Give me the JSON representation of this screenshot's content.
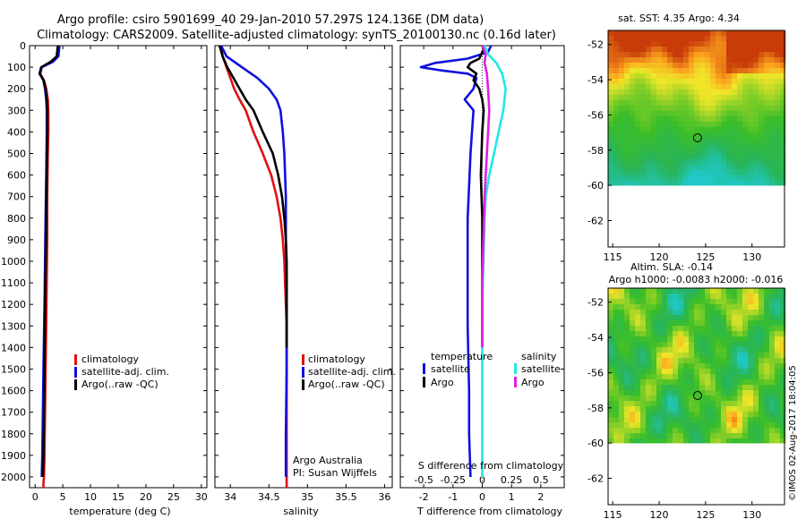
{
  "header": {
    "line1": "Argo profile: csiro 5901699_40 29-Jan-2010 57.297S 124.136E (DM data)",
    "line2": "Climatology: CARS2009. Satellite-adjusted climatology: synTS_20100130.nc (0.16d later)"
  },
  "colors": {
    "red": "#e01010",
    "blue": "#1010e0",
    "black": "#000000",
    "cyan": "#20e8e8",
    "magenta": "#e020e0"
  },
  "depth_ticks": [
    0,
    100,
    200,
    300,
    400,
    500,
    600,
    700,
    800,
    900,
    1000,
    1100,
    1200,
    1300,
    1400,
    1500,
    1600,
    1700,
    1800,
    1900,
    2000
  ],
  "chart_data": [
    {
      "type": "line",
      "xlabel": "temperature (deg C)",
      "xlim": [
        -1,
        31
      ],
      "ylim": [
        0,
        2050
      ],
      "xticks": [
        0,
        5,
        10,
        15,
        20,
        25,
        30
      ],
      "legend": {
        "placement": "lower-middle",
        "entries": [
          "climatology",
          "satellite-adj. clim.",
          "Argo(..raw -QC)"
        ]
      },
      "series": [
        {
          "name": "climatology",
          "color": "red",
          "x": [
            4.2,
            4.0,
            3.0,
            1.2,
            0.9,
            1.6,
            2.0,
            2.3,
            2.4,
            2.4,
            2.3,
            2.2,
            2.2,
            2.1,
            2.0,
            1.9,
            1.8,
            1.7,
            1.6,
            1.5,
            1.5
          ],
          "y": [
            0,
            50,
            75,
            100,
            130,
            160,
            200,
            250,
            300,
            400,
            500,
            700,
            900,
            1100,
            1300,
            1500,
            1700,
            1900,
            2000,
            2030,
            2050
          ]
        },
        {
          "name": "satellite-adj. clim.",
          "color": "blue",
          "x": [
            4.4,
            4.2,
            3.2,
            1.2,
            0.9,
            1.5,
            1.8,
            2.0,
            2.1,
            2.1,
            2.0,
            1.9,
            1.8,
            1.7,
            1.5,
            1.4,
            1.3,
            1.2
          ],
          "y": [
            0,
            50,
            75,
            100,
            130,
            160,
            200,
            250,
            300,
            400,
            600,
            800,
            1000,
            1200,
            1500,
            1700,
            1900,
            2000
          ]
        },
        {
          "name": "Argo(..raw -QC)",
          "color": "black",
          "x": [
            4.1,
            3.9,
            2.8,
            1.1,
            0.8,
            1.5,
            1.9,
            2.1,
            2.2,
            2.2,
            2.1,
            2.0,
            1.9,
            1.8,
            1.7,
            1.6,
            1.5,
            1.4
          ],
          "y": [
            0,
            50,
            75,
            100,
            130,
            160,
            200,
            250,
            300,
            400,
            600,
            800,
            1000,
            1200,
            1500,
            1700,
            1900,
            2000
          ]
        }
      ]
    },
    {
      "type": "line",
      "xlabel": "salinity",
      "xlim": [
        33.8,
        36.1
      ],
      "ylim": [
        0,
        2050
      ],
      "xticks": [
        34,
        34.5,
        35,
        35.5,
        36
      ],
      "xticklabels": [
        "34",
        "34.5",
        "35",
        "35.5",
        "36"
      ],
      "legend": {
        "placement": "lower-right",
        "entries": [
          "climatology",
          "satellite-adj. clim.",
          "Argo(..raw -QC)"
        ]
      },
      "annotation": [
        "Argo Australia",
        "PI: Susan Wijffels"
      ],
      "series": [
        {
          "name": "climatology",
          "color": "red",
          "x": [
            33.88,
            33.9,
            33.95,
            34.0,
            34.05,
            34.12,
            34.2,
            34.3,
            34.42,
            34.53,
            34.6,
            34.65,
            34.68,
            34.7,
            34.71,
            34.72,
            34.73,
            34.73,
            34.73,
            34.73,
            34.73
          ],
          "y": [
            0,
            50,
            100,
            150,
            200,
            250,
            300,
            400,
            500,
            600,
            700,
            800,
            900,
            1000,
            1100,
            1200,
            1300,
            1500,
            1700,
            2000,
            2050
          ]
        },
        {
          "name": "satellite-adj. clim.",
          "color": "blue",
          "x": [
            33.88,
            33.95,
            34.15,
            34.35,
            34.5,
            34.6,
            34.65,
            34.68,
            34.7,
            34.72,
            34.72,
            34.73,
            34.73,
            34.73,
            34.72,
            34.72
          ],
          "y": [
            0,
            50,
            100,
            150,
            200,
            250,
            300,
            400,
            500,
            700,
            900,
            1100,
            1300,
            1500,
            1800,
            2000
          ]
        },
        {
          "name": "Argo(..raw -QC)",
          "color": "black",
          "x": [
            33.86,
            33.9,
            33.96,
            34.04,
            34.12,
            34.2,
            34.3,
            34.42,
            34.55,
            34.62,
            34.67,
            34.7,
            34.72,
            34.73,
            34.73,
            34.73
          ],
          "y": [
            0,
            50,
            100,
            150,
            200,
            250,
            300,
            400,
            500,
            600,
            700,
            800,
            900,
            1000,
            1200,
            1400
          ]
        }
      ]
    },
    {
      "type": "line",
      "xlabel": "T difference from climatology",
      "xlabel_top": "S difference from climatology",
      "xlim": [
        -2.8,
        2.8
      ],
      "ylim": [
        0,
        2050
      ],
      "xticks": [
        -2,
        -1,
        0,
        1,
        2
      ],
      "xticks_top": [
        -0.5,
        -0.25,
        0,
        0.25,
        0.5
      ],
      "s_scale": 4,
      "legend": {
        "placement": "lower-middle",
        "groups": [
          "temperature",
          "salinity"
        ],
        "entries_temperature": [
          "satellite",
          "Argo"
        ],
        "entries_salinity": [
          "satellite",
          "Argo"
        ]
      },
      "series": [
        {
          "name": "satellite",
          "group": "temperature",
          "color": "blue",
          "x": [
            0.3,
            0.2,
            -0.5,
            -1.6,
            -2.1,
            -1.4,
            -0.5,
            -0.2,
            -0.3,
            -0.6,
            -0.3,
            -0.4,
            -0.5,
            -0.5,
            -0.5,
            -0.45,
            -0.45,
            -0.4
          ],
          "y": [
            0,
            30,
            60,
            80,
            100,
            115,
            130,
            150,
            200,
            250,
            300,
            500,
            800,
            1000,
            1300,
            1600,
            1800,
            2000
          ]
        },
        {
          "name": "Argo",
          "group": "temperature",
          "color": "black",
          "x": [
            0.1,
            0.0,
            -0.1,
            -0.4,
            -0.5,
            -0.2,
            -0.3,
            -0.1,
            0.0,
            0.05,
            0.0,
            -0.05,
            0.0,
            0.0,
            0.0,
            0.0
          ],
          "y": [
            0,
            30,
            60,
            80,
            100,
            130,
            160,
            200,
            250,
            300,
            400,
            600,
            800,
            1000,
            1200,
            1400
          ]
        },
        {
          "name": "satellite",
          "group": "salinity",
          "color": "cyan",
          "x": [
            0.02,
            0.05,
            0.12,
            0.17,
            0.2,
            0.18,
            0.14,
            0.1,
            0.06,
            0.03,
            0.02,
            0.01,
            0.0,
            0.0,
            0.0
          ],
          "y": [
            0,
            40,
            80,
            130,
            200,
            300,
            400,
            500,
            600,
            700,
            800,
            1000,
            1200,
            1400,
            2000
          ]
        },
        {
          "name": "Argo",
          "group": "salinity",
          "color": "magenta",
          "x": [
            0.0,
            0.03,
            0.02,
            0.04,
            0.05,
            0.06,
            0.05,
            0.04,
            0.03,
            0.02,
            0.01,
            0.0,
            0.0
          ],
          "y": [
            0,
            40,
            80,
            130,
            200,
            300,
            400,
            500,
            600,
            700,
            900,
            1100,
            1400
          ]
        }
      ]
    },
    {
      "type": "heatmap",
      "title": "sat. SST: 4.35 Argo: 4.34",
      "xlim": [
        114.5,
        133.5
      ],
      "ylim": [
        -63.5,
        -51.2
      ],
      "xticks": [
        115,
        120,
        125,
        130
      ],
      "yticks": [
        -52,
        -54,
        -56,
        -58,
        -60,
        -62
      ],
      "yticklabels": [
        "-52",
        "-54",
        "-56",
        "-58",
        "-60",
        "-62"
      ],
      "marker": {
        "lon": 124.14,
        "lat": -57.3
      },
      "data_lat_range": [
        -60,
        -51.2
      ]
    },
    {
      "type": "heatmap",
      "title_lines": [
        "Altim. SLA: -0.14",
        "Argo h1000: -0.0083 h2000: -0.016"
      ],
      "xlim": [
        114.5,
        133.5
      ],
      "ylim": [
        -63.5,
        -51.2
      ],
      "xticks": [
        115,
        120,
        125,
        130
      ],
      "yticks": [
        -52,
        -54,
        -56,
        -58,
        -60,
        -62
      ],
      "yticklabels": [
        "-52",
        "-54",
        "-56",
        "-58",
        "-60",
        "-62"
      ],
      "marker": {
        "lon": 124.14,
        "lat": -57.3
      },
      "data_lat_range": [
        -60,
        -51.2
      ]
    }
  ],
  "side_text": "©IMOS 02-Aug-2017 18:04:05"
}
